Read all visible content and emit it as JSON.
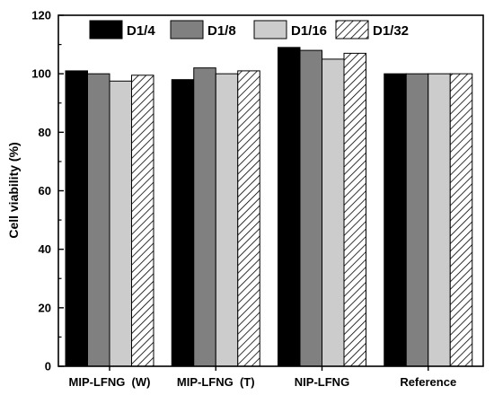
{
  "chart_data": {
    "type": "bar",
    "categories": [
      "MIP-LFNG  (W)",
      "MIP-LFNG  (T)",
      "NIP-LFNG",
      "Reference"
    ],
    "series": [
      {
        "name": "D1/4",
        "values": [
          101,
          98,
          109,
          100
        ],
        "color": "#000000",
        "pattern": "solid"
      },
      {
        "name": "D1/8",
        "values": [
          100,
          102,
          108,
          100
        ],
        "color": "#808080",
        "pattern": "solid"
      },
      {
        "name": "D1/16",
        "values": [
          97.5,
          100,
          105,
          100
        ],
        "color": "#cccccc",
        "pattern": "solid"
      },
      {
        "name": "D1/32",
        "values": [
          99.5,
          101,
          107,
          100
        ],
        "color": "#ffffff",
        "pattern": "hatched"
      }
    ],
    "xlabel": "",
    "ylabel": "Cell viability (%)",
    "ylim": [
      0,
      120
    ],
    "yticks": [
      0,
      20,
      40,
      60,
      80,
      100,
      120
    ],
    "yticks_minor_step": 10,
    "grid": false,
    "legend_position": "top"
  }
}
